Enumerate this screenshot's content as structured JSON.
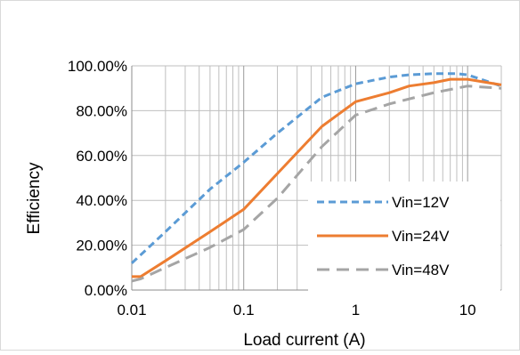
{
  "chart_data": {
    "type": "line",
    "title": "",
    "xlabel": "Load current (A)",
    "ylabel": "Efficiency",
    "x_scale": "log",
    "xlim": [
      0.01,
      20
    ],
    "ylim": [
      0,
      1
    ],
    "x_ticks": [
      0.01,
      0.1,
      1,
      10
    ],
    "x_tick_labels": [
      "0.01",
      "0.1",
      "1",
      "10"
    ],
    "y_ticks": [
      0,
      0.2,
      0.4,
      0.6,
      0.8,
      1
    ],
    "y_tick_labels": [
      "0.00%",
      "20.00%",
      "40.00%",
      "60.00%",
      "80.00%",
      "100.00%"
    ],
    "grid": "horizontal major and log-minor vertical",
    "legend_position": "bottom-right",
    "series": [
      {
        "name": "Vin=12V",
        "color": "#5B9BD5",
        "dash": "dashed",
        "x": [
          0.01,
          0.02,
          0.05,
          0.1,
          0.2,
          0.5,
          1,
          2,
          3,
          5,
          8,
          10,
          20
        ],
        "y": [
          0.12,
          0.26,
          0.45,
          0.57,
          0.7,
          0.86,
          0.92,
          0.95,
          0.96,
          0.965,
          0.965,
          0.96,
          0.91
        ]
      },
      {
        "name": "Vin=24V",
        "color": "#ED7D31",
        "dash": "solid",
        "x": [
          0.01,
          0.012,
          0.02,
          0.05,
          0.1,
          0.2,
          0.5,
          1,
          2,
          3,
          5,
          7,
          10,
          20
        ],
        "y": [
          0.06,
          0.06,
          0.13,
          0.26,
          0.36,
          0.52,
          0.73,
          0.84,
          0.88,
          0.91,
          0.925,
          0.94,
          0.94,
          0.915
        ]
      },
      {
        "name": "Vin=48V",
        "color": "#A5A5A5",
        "dash": "dashed",
        "x": [
          0.01,
          0.012,
          0.02,
          0.05,
          0.1,
          0.2,
          0.5,
          1,
          2,
          5,
          10,
          20
        ],
        "y": [
          0.04,
          0.05,
          0.1,
          0.19,
          0.27,
          0.41,
          0.64,
          0.78,
          0.83,
          0.88,
          0.91,
          0.9
        ]
      }
    ]
  }
}
